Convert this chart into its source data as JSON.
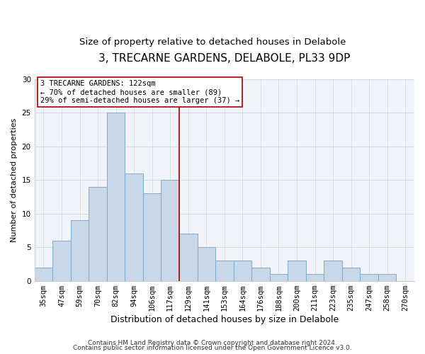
{
  "title": "3, TRECARNE GARDENS, DELABOLE, PL33 9DP",
  "subtitle": "Size of property relative to detached houses in Delabole",
  "xlabel": "Distribution of detached houses by size in Delabole",
  "ylabel": "Number of detached properties",
  "bar_labels": [
    "35sqm",
    "47sqm",
    "59sqm",
    "70sqm",
    "82sqm",
    "94sqm",
    "106sqm",
    "117sqm",
    "129sqm",
    "141sqm",
    "153sqm",
    "164sqm",
    "176sqm",
    "188sqm",
    "200sqm",
    "211sqm",
    "223sqm",
    "235sqm",
    "247sqm",
    "258sqm",
    "270sqm"
  ],
  "bar_values": [
    2,
    6,
    9,
    14,
    25,
    16,
    13,
    15,
    7,
    5,
    3,
    3,
    2,
    1,
    3,
    1,
    3,
    2,
    1,
    1,
    0
  ],
  "bar_color": "#c8d8e8",
  "bar_edge_color": "#7fa8c8",
  "vline_x": 7.5,
  "vline_color": "#aa0000",
  "ylim": [
    0,
    30
  ],
  "yticks": [
    0,
    5,
    10,
    15,
    20,
    25,
    30
  ],
  "annotation_title": "3 TRECARNE GARDENS: 122sqm",
  "annotation_line1": "← 70% of detached houses are smaller (89)",
  "annotation_line2": "29% of semi-detached houses are larger (37) →",
  "annotation_box_color": "#ffffff",
  "annotation_box_edge": "#aa0000",
  "footer1": "Contains HM Land Registry data © Crown copyright and database right 2024.",
  "footer2": "Contains public sector information licensed under the Open Government Licence v3.0.",
  "background_color": "#ffffff",
  "plot_bg_color": "#f0f4f8",
  "title_fontsize": 11,
  "subtitle_fontsize": 9.5,
  "xlabel_fontsize": 9,
  "ylabel_fontsize": 8,
  "tick_fontsize": 7.5,
  "annotation_fontsize": 7.5,
  "footer_fontsize": 6.5
}
